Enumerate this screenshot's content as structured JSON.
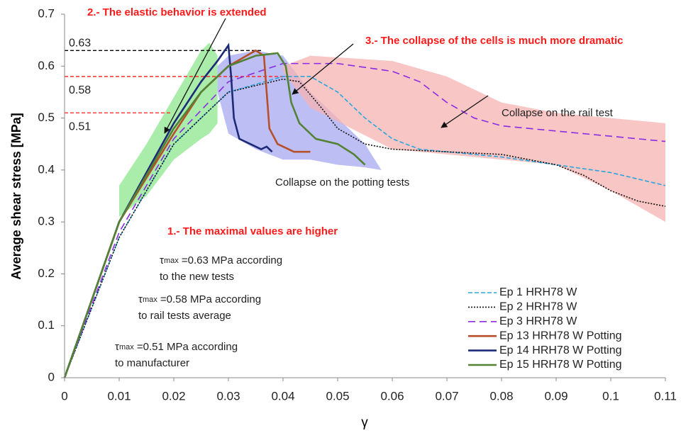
{
  "chart_data": {
    "type": "line",
    "x_label": "γ",
    "y_label": "Average shear stress [MPa]",
    "xlim": [
      0,
      0.11
    ],
    "ylim": [
      0,
      0.7
    ],
    "xticks": [
      0,
      0.01,
      0.02,
      0.03,
      0.04,
      0.05,
      0.06,
      0.07,
      0.08,
      0.09,
      0.1,
      0.11
    ],
    "yticks": [
      0,
      0.1,
      0.2,
      0.3,
      0.4,
      0.5,
      0.6,
      0.7
    ],
    "grid": false,
    "legend": "lower right",
    "bands": [
      {
        "color": "#8ee68e",
        "x": [
          0.01,
          0.015,
          0.02,
          0.025,
          0.0265,
          0.028
        ],
        "upper": [
          0.37,
          0.45,
          0.54,
          0.63,
          0.645,
          0.62
        ],
        "lower": [
          0.31,
          0.35,
          0.42,
          0.46,
          0.47,
          0.49
        ]
      },
      {
        "color": "#a7a9f0",
        "x": [
          0.028,
          0.03,
          0.035,
          0.04,
          0.045,
          0.05,
          0.055,
          0.058
        ],
        "upper": [
          0.6,
          0.62,
          0.63,
          0.62,
          0.55,
          0.5,
          0.45,
          0.4
        ],
        "lower": [
          0.55,
          0.47,
          0.44,
          0.42,
          0.42,
          0.41,
          0.405,
          0.4
        ]
      },
      {
        "color": "#f7b3b3",
        "x": [
          0.04,
          0.045,
          0.06,
          0.07,
          0.08,
          0.09,
          0.1,
          0.11
        ],
        "upper": [
          0.6,
          0.62,
          0.61,
          0.58,
          0.53,
          0.51,
          0.5,
          0.49
        ],
        "lower": [
          0.59,
          0.52,
          0.44,
          0.43,
          0.42,
          0.41,
          0.36,
          0.3
        ]
      }
    ],
    "ref_lines": [
      {
        "value": 0.63,
        "color": "#000000",
        "x_end": 0.0362
      },
      {
        "value": 0.58,
        "color": "#ff1a1a",
        "x_end": 0.041
      },
      {
        "value": 0.51,
        "color": "#ff1a1a",
        "x_end": 0.0197
      }
    ],
    "series": [
      {
        "name": "Ep 1 HRH78 W",
        "color": "#2aa5dc",
        "style": "dashed",
        "x": [
          0,
          0.01,
          0.02,
          0.03,
          0.04,
          0.045,
          0.05,
          0.055,
          0.06,
          0.065,
          0.07,
          0.08,
          0.09,
          0.1,
          0.11
        ],
        "values": [
          0,
          0.27,
          0.45,
          0.55,
          0.58,
          0.58,
          0.55,
          0.5,
          0.46,
          0.44,
          0.435,
          0.425,
          0.41,
          0.395,
          0.37
        ]
      },
      {
        "name": "Ep 2 HRH78 W",
        "color": "#111111",
        "style": "dotted",
        "x": [
          0,
          0.01,
          0.02,
          0.03,
          0.04,
          0.043,
          0.047,
          0.05,
          0.055,
          0.06,
          0.07,
          0.08,
          0.085,
          0.09,
          0.095,
          0.1,
          0.105,
          0.11
        ],
        "values": [
          0,
          0.27,
          0.45,
          0.55,
          0.575,
          0.57,
          0.52,
          0.48,
          0.45,
          0.44,
          0.435,
          0.43,
          0.42,
          0.41,
          0.39,
          0.36,
          0.34,
          0.33
        ]
      },
      {
        "name": "Ep 3 HRH78 W",
        "color": "#8a2be2",
        "style": "long-dashed",
        "x": [
          0,
          0.01,
          0.02,
          0.03,
          0.04,
          0.05,
          0.06,
          0.065,
          0.07,
          0.075,
          0.08,
          0.09,
          0.1,
          0.11
        ],
        "values": [
          0,
          0.28,
          0.46,
          0.57,
          0.605,
          0.605,
          0.59,
          0.57,
          0.53,
          0.5,
          0.485,
          0.475,
          0.465,
          0.455
        ]
      },
      {
        "name": "Ep 13 HRH78 W Potting",
        "color": "#b5502a",
        "style": "solid",
        "x": [
          0,
          0.01,
          0.02,
          0.025,
          0.03,
          0.035,
          0.0365,
          0.037,
          0.0375,
          0.039,
          0.042,
          0.045
        ],
        "values": [
          0,
          0.3,
          0.47,
          0.55,
          0.6,
          0.63,
          0.62,
          0.55,
          0.48,
          0.45,
          0.435,
          0.435
        ]
      },
      {
        "name": "Ep 14 HRH78 W Potting",
        "color": "#1c2a78",
        "style": "solid",
        "x": [
          0,
          0.01,
          0.02,
          0.025,
          0.028,
          0.03,
          0.0305,
          0.031,
          0.032,
          0.034,
          0.036,
          0.037,
          0.038
        ],
        "values": [
          0,
          0.3,
          0.49,
          0.57,
          0.61,
          0.64,
          0.58,
          0.5,
          0.46,
          0.45,
          0.44,
          0.445,
          0.435
        ]
      },
      {
        "name": "Ep 15 HRH78 W Potting",
        "color": "#548235",
        "style": "solid",
        "x": [
          0,
          0.01,
          0.02,
          0.025,
          0.03,
          0.035,
          0.039,
          0.0405,
          0.0415,
          0.043,
          0.046,
          0.05,
          0.053,
          0.055
        ],
        "values": [
          0,
          0.3,
          0.48,
          0.55,
          0.6,
          0.62,
          0.625,
          0.6,
          0.53,
          0.49,
          0.46,
          0.45,
          0.43,
          0.41
        ]
      }
    ],
    "annotations": {
      "elastic": "2.- The elastic behavior is extended",
      "collapse": "3.- The collapse of the cells is much more dramatic",
      "maximal": "1.- The maximal values are higher",
      "rail": "Collapse on the rail test",
      "potting": "Collapse on the potting tests",
      "tau": [
        {
          "symbol": "τ",
          "sub": "max",
          "line1": " =0.63 MPa according",
          "line2": "to the new tests"
        },
        {
          "symbol": "τ",
          "sub": "max",
          "line1": " =0.58 MPa according",
          "line2": "to rail tests average"
        },
        {
          "symbol": "τ",
          "sub": "max",
          "line1": " =0.51 MPa according",
          "line2": "to manufacturer"
        }
      ]
    }
  }
}
